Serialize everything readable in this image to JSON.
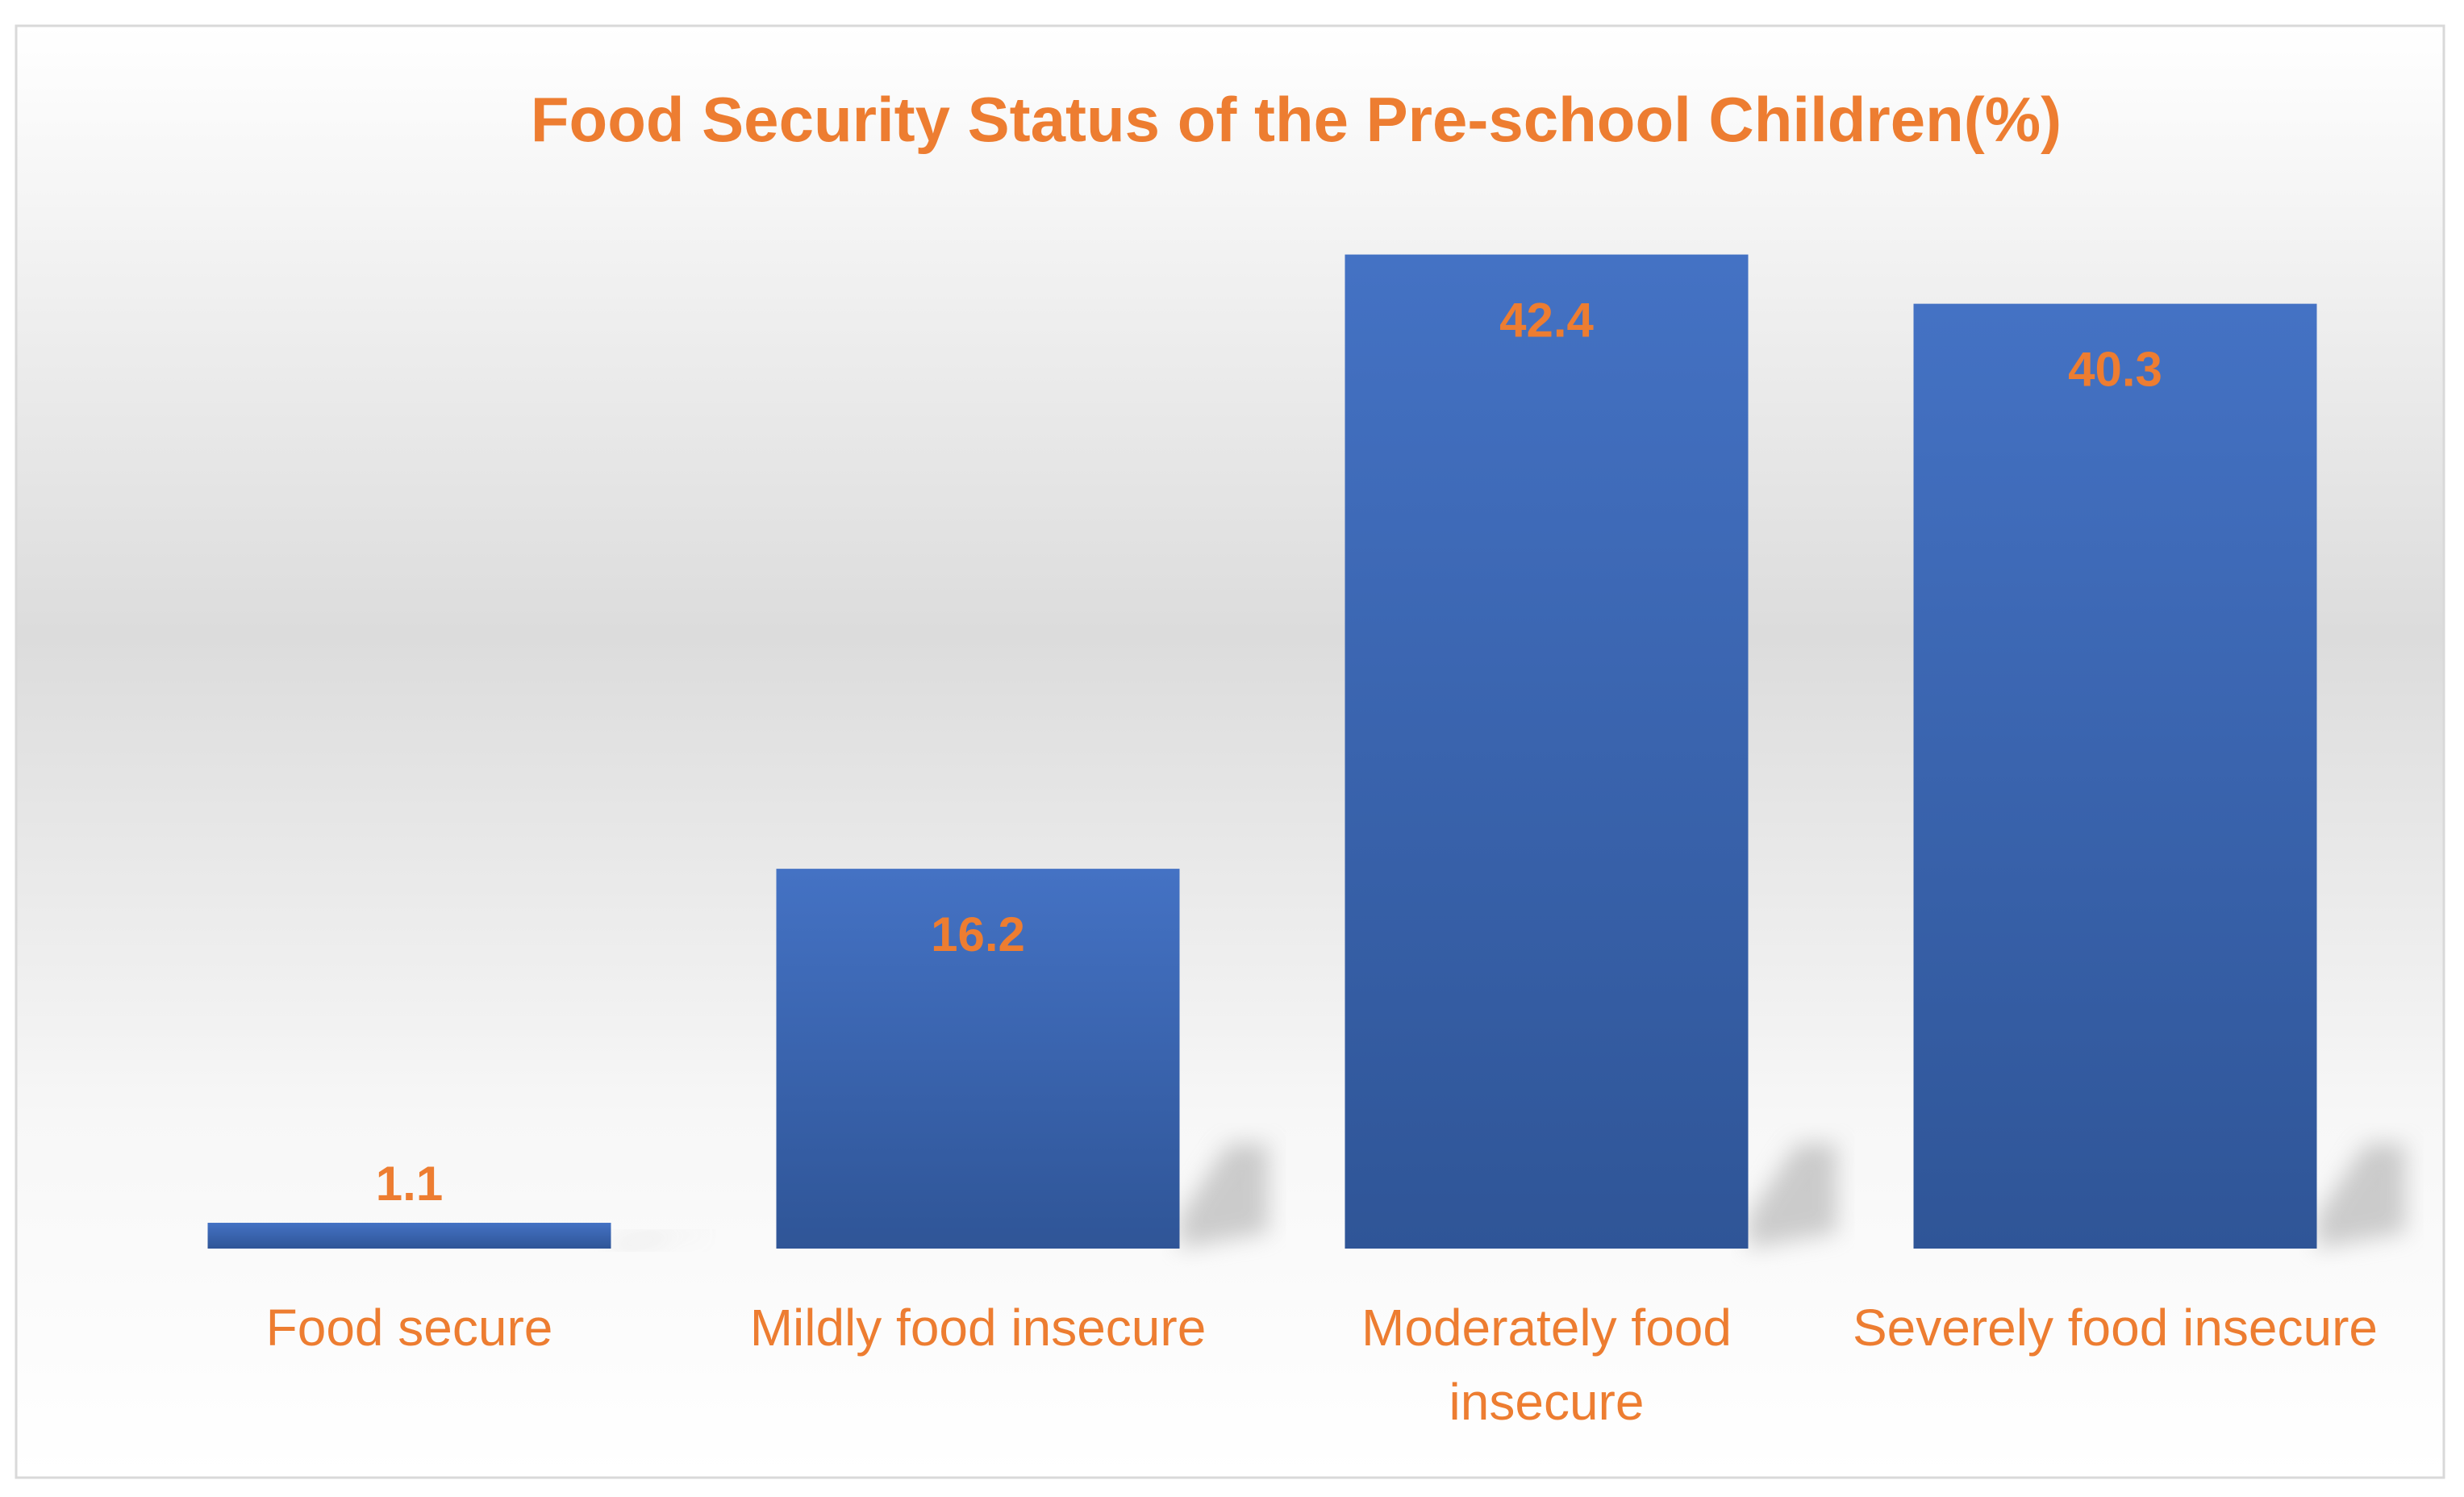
{
  "chart_data": {
    "type": "bar",
    "title": "Food Security Status of the Pre-school Children(%)",
    "categories": [
      "Food secure",
      "Mildly food insecure",
      "Moderately food insecure",
      "Severely food insecure"
    ],
    "category_lines": [
      [
        "Food secure"
      ],
      [
        "Mildly food insecure"
      ],
      [
        "Moderately food",
        "insecure"
      ],
      [
        "Severely food insecure"
      ]
    ],
    "values": [
      1.1,
      16.2,
      42.4,
      40.3
    ],
    "value_labels": [
      "1.1",
      "16.2",
      "42.4",
      "40.3"
    ],
    "ylim": [
      0,
      45
    ],
    "xlabel": "",
    "ylabel": "",
    "grid": false,
    "legend": "none",
    "colors": {
      "bar_top": "#4472C4",
      "bar_bottom": "#2F5597",
      "text": "#ED7D31",
      "border": "#D9D9D9"
    }
  }
}
